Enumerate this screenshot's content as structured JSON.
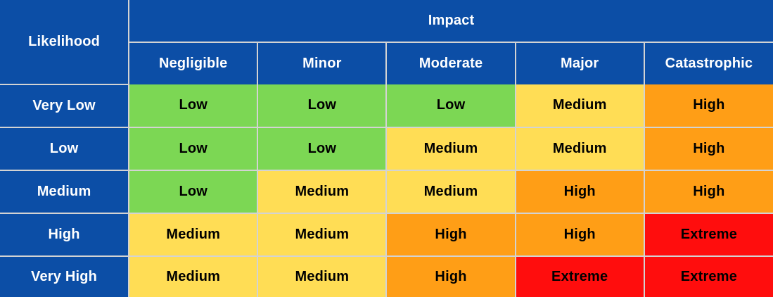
{
  "table": {
    "corner_header": "Likelihood",
    "impact_header": "Impact",
    "impact_levels": [
      "Negligible",
      "Minor",
      "Moderate",
      "Major",
      "Catastrophic"
    ],
    "likelihood_levels": [
      "Very Low",
      "Low",
      "Medium",
      "High",
      "Very High"
    ],
    "cells": [
      [
        "Low",
        "Low",
        "Low",
        "Medium",
        "High"
      ],
      [
        "Low",
        "Low",
        "Medium",
        "Medium",
        "High"
      ],
      [
        "Low",
        "Medium",
        "Medium",
        "High",
        "High"
      ],
      [
        "Medium",
        "Medium",
        "High",
        "High",
        "Extreme"
      ],
      [
        "Medium",
        "Medium",
        "High",
        "Extreme",
        "Extreme"
      ]
    ]
  },
  "colors": {
    "header_bg": "#0C4EA6",
    "header_text": "#FFFFFF",
    "cell_text": "#000000",
    "grid_line": "#D3D3D3",
    "risk_levels": {
      "Low": "#7CD754",
      "Medium": "#FFDD55",
      "High": "#FF9E16",
      "Extreme": "#FF0D0D"
    }
  },
  "chart_data": {
    "type": "heatmap",
    "title": "",
    "xlabel": "Impact",
    "ylabel": "Likelihood",
    "x_categories": [
      "Negligible",
      "Minor",
      "Moderate",
      "Major",
      "Catastrophic"
    ],
    "y_categories": [
      "Very Low",
      "Low",
      "Medium",
      "High",
      "Very High"
    ],
    "values": [
      [
        "Low",
        "Low",
        "Low",
        "Medium",
        "High"
      ],
      [
        "Low",
        "Low",
        "Medium",
        "Medium",
        "High"
      ],
      [
        "Low",
        "Medium",
        "Medium",
        "High",
        "High"
      ],
      [
        "Medium",
        "Medium",
        "High",
        "High",
        "Extreme"
      ],
      [
        "Medium",
        "Medium",
        "High",
        "Extreme",
        "Extreme"
      ]
    ],
    "value_colors": {
      "Low": "#7CD754",
      "Medium": "#FFDD55",
      "High": "#FF9E16",
      "Extreme": "#FF0D0D"
    },
    "grid": true,
    "legend_position": "none"
  }
}
